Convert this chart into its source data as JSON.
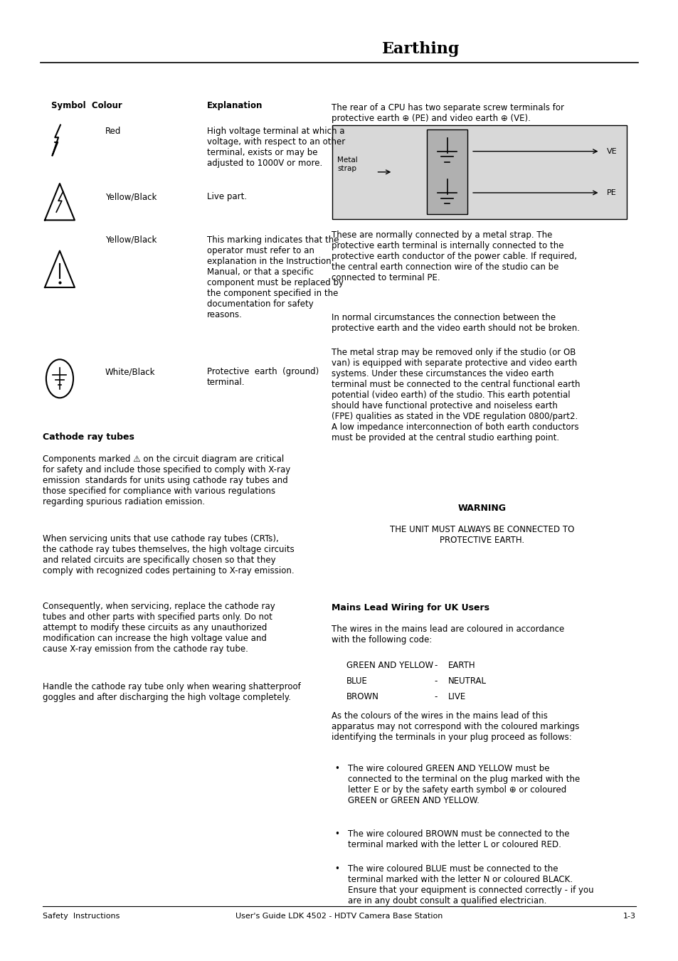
{
  "title": "Earthing",
  "bg_color": "#ffffff",
  "text_color": "#000000",
  "footer_left": "Safety  Instructions",
  "footer_center": "User's Guide LDK 4502 - HDTV Camera Base Station",
  "footer_right": "1-3",
  "header_col1": "Symbol  Colour",
  "header_col2": "Explanation",
  "cathode_title": "Cathode ray tubes",
  "warning_title": "WARNING",
  "mains_title": "Mains Lead Wiring for UK Users"
}
